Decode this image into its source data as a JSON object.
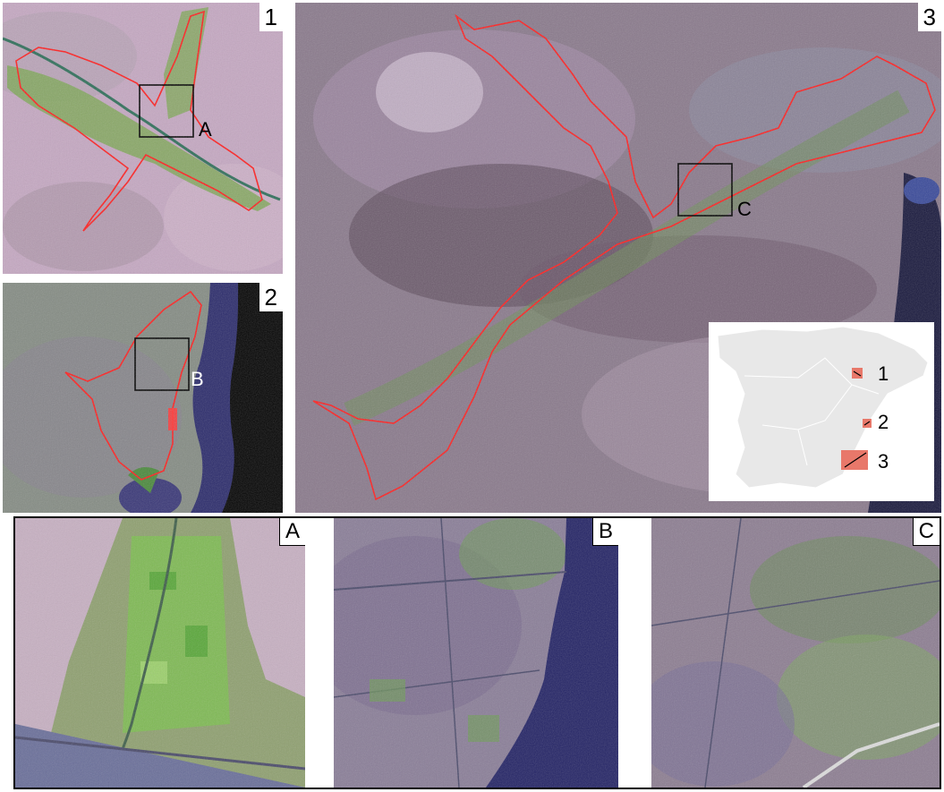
{
  "panels": {
    "p1": {
      "label": "1",
      "box_label": "A"
    },
    "p2": {
      "label": "2",
      "box_label": "B"
    },
    "p3": {
      "label": "3",
      "box_label": "C"
    }
  },
  "inset": {
    "labels": [
      "1",
      "2",
      "3"
    ],
    "marker_color": "#e8786a",
    "land_color": "#e8e8e8"
  },
  "zooms": {
    "a": {
      "label": "A"
    },
    "b": {
      "label": "B"
    },
    "c": {
      "label": "C"
    }
  },
  "colors": {
    "boundary": "#ff2020",
    "sea": "#2c2c6c",
    "crop": "#78c050",
    "terrain": "#a48aa6"
  }
}
